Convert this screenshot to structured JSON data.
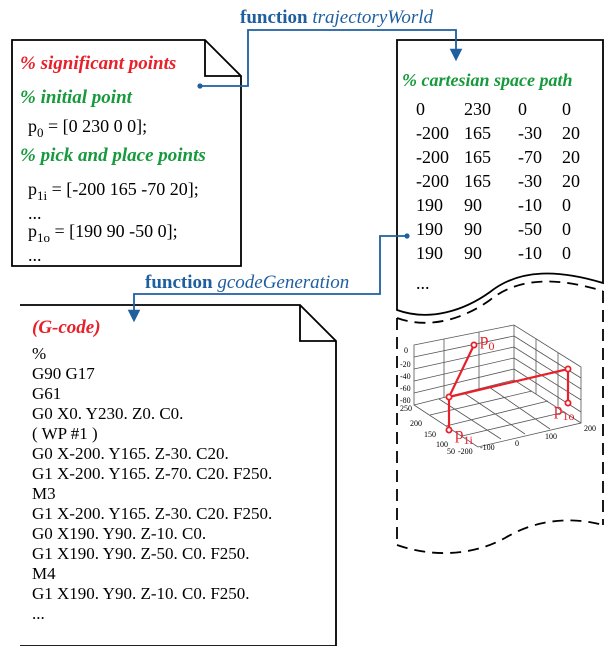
{
  "function_labels": {
    "top": {
      "keyword": "function",
      "name": "trajectoryWorld"
    },
    "middle": {
      "keyword": "function",
      "name": "gcodeGeneration"
    }
  },
  "doc_points": {
    "heading": "% significant points",
    "initial_comment": "% initial point",
    "p0_lhs": "p",
    "p0_sub": "0",
    "p0_rhs": " = [0 230 0 0];",
    "pick_comment": "% pick and place points",
    "p1i_lhs": "p",
    "p1i_sub": "1i",
    "p1i_rhs": " = [-200 165 -70 20];",
    "dots1": "...",
    "p1o_lhs": "p",
    "p1o_sub": "1o",
    "p1o_rhs": " = [190 90 -50 0];",
    "dots2": "..."
  },
  "doc_path": {
    "heading": "% cartesian space path",
    "rows": [
      [
        "0",
        "230",
        "0",
        "0"
      ],
      [
        "-200",
        "165",
        "-30",
        "20"
      ],
      [
        "-200",
        "165",
        "-70",
        "20"
      ],
      [
        "-200",
        "165",
        "-30",
        "20"
      ],
      [
        "190",
        "90",
        "-10",
        "0"
      ],
      [
        "190",
        "90",
        "-50",
        "0"
      ],
      [
        "190",
        "90",
        "-10",
        "0"
      ]
    ],
    "dots": "..."
  },
  "doc_gcode": {
    "heading": "(G-code)",
    "lines": [
      "%",
      "G90 G17",
      "G61",
      "G0 X0. Y230. Z0. C0.",
      "( WP #1 )",
      "G0 X-200. Y165. Z-30. C20.",
      "G1 X-200. Y165. Z-70. C20. F250.",
      "M3",
      "G1 X-200. Y165. Z-30. C20. F250.",
      "G0 X190. Y90. Z-10. C0.",
      "G1 X190. Y90. Z-50. C0. F250.",
      "M4",
      "G1 X190. Y90. Z-10. C0. F250.",
      "..."
    ]
  },
  "plot3d": {
    "z_ticks": [
      "0",
      "-20",
      "-40",
      "-60",
      "-80"
    ],
    "y_ticks": [
      "250",
      "200",
      "150",
      "100",
      "50"
    ],
    "x_ticks": [
      "-200",
      "-100",
      "0",
      "100",
      "200"
    ],
    "labels": {
      "p0": {
        "base": "p",
        "sub": "0"
      },
      "p1i": {
        "base": "p",
        "sub": "1i"
      },
      "p1o": {
        "base": "p",
        "sub": "1o"
      }
    }
  },
  "colors": {
    "red": "#e8202a",
    "green": "#179a3c",
    "blue": "#1f5fa0",
    "arrow": "#1f5fa0"
  }
}
